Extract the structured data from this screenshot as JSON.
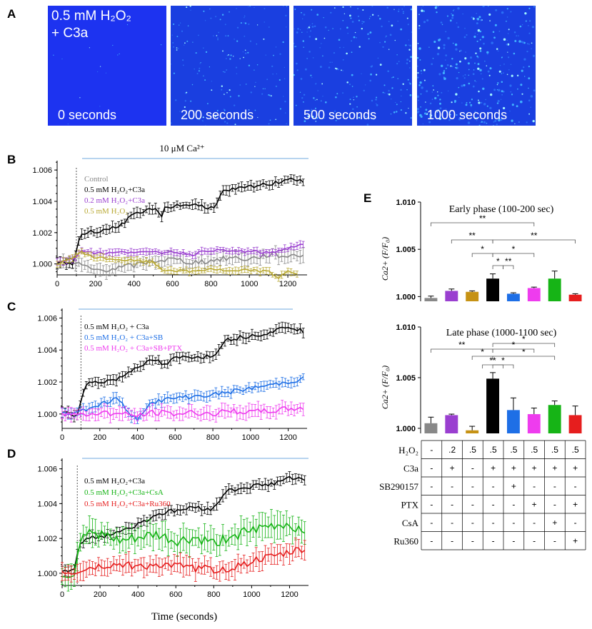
{
  "panel_letters": {
    "a": "A",
    "b": "B",
    "c": "C",
    "d": "D",
    "e": "E"
  },
  "image_row": {
    "condition_line1": "0.5 mM H₂O₂",
    "condition_line2": "+ C3a",
    "frames": [
      {
        "label": "0 seconds",
        "intensity": 0.05
      },
      {
        "label": "200 seconds",
        "intensity": 0.45
      },
      {
        "label": "500 seconds",
        "intensity": 0.6
      },
      {
        "label": "1000 seconds",
        "intensity": 0.85
      }
    ]
  },
  "ca_label": "10 μM Ca²⁺",
  "time_axis_label": "Time (seconds)",
  "colors": {
    "black": "#000000",
    "gray": "#888888",
    "purple": "#9a3fd0",
    "olive": "#b8a832",
    "blue": "#1e6fe6",
    "magenta": "#ee3cee",
    "green": "#16b416",
    "red": "#e61e1e",
    "gold": "#c69214",
    "lightblue": "#9fc6ea"
  },
  "chart_data": [
    {
      "id": "B",
      "type": "line",
      "xlim": [
        0,
        1300
      ],
      "ylim": [
        0.9993,
        1.0066
      ],
      "xticks": [
        0,
        200,
        400,
        600,
        800,
        1000,
        1200
      ],
      "yticks": [
        1.0,
        1.002,
        1.004,
        1.006
      ],
      "ytick_labels": [
        "1.000",
        "1.002",
        "1.004",
        "1.006"
      ],
      "stim_time": 100,
      "legend": [
        "Control",
        "0.5 mM H₂O₂+C3a",
        "0.2 mM H₂O₂+C3a",
        "0.5 mM H₂O₂"
      ],
      "series": [
        {
          "name": "Control",
          "color": "gray",
          "pts": [
            [
              0,
              1.0001
            ],
            [
              100,
              1.0
            ],
            [
              150,
              0.9998
            ],
            [
              200,
              0.9996
            ],
            [
              300,
              0.9997
            ],
            [
              400,
              0.9999
            ],
            [
              500,
              1.0002
            ],
            [
              600,
              1.0003
            ],
            [
              700,
              1.0001
            ],
            [
              800,
              1.0002
            ],
            [
              900,
              1.0004
            ],
            [
              1000,
              1.0003
            ],
            [
              1100,
              1.0006
            ],
            [
              1200,
              1.0005
            ],
            [
              1280,
              1.0006
            ]
          ],
          "err": 0.0004
        },
        {
          "name": "0.5 mM H₂O₂+C3a",
          "color": "black",
          "pts": [
            [
              0,
              1.0001
            ],
            [
              80,
              1.0
            ],
            [
              100,
              1.0008
            ],
            [
              120,
              1.0019
            ],
            [
              200,
              1.0021
            ],
            [
              300,
              1.0023
            ],
            [
              350,
              1.0027
            ],
            [
              400,
              1.0031
            ],
            [
              450,
              1.0033
            ],
            [
              500,
              1.0036
            ],
            [
              540,
              1.003
            ],
            [
              560,
              1.0036
            ],
            [
              600,
              1.0037
            ],
            [
              700,
              1.0038
            ],
            [
              800,
              1.0036
            ],
            [
              830,
              1.0038
            ],
            [
              860,
              1.0046
            ],
            [
              900,
              1.0047
            ],
            [
              1000,
              1.0049
            ],
            [
              1100,
              1.0051
            ],
            [
              1150,
              1.0052
            ],
            [
              1200,
              1.0055
            ],
            [
              1280,
              1.0053
            ]
          ],
          "err": 0.0003
        },
        {
          "name": "0.2 mM H₂O₂+C3a",
          "color": "purple",
          "pts": [
            [
              0,
              1.0001
            ],
            [
              100,
              1.0004
            ],
            [
              120,
              1.0009
            ],
            [
              200,
              1.0007
            ],
            [
              300,
              1.0007
            ],
            [
              400,
              1.0008
            ],
            [
              500,
              1.0007
            ],
            [
              600,
              1.0008
            ],
            [
              700,
              1.0006
            ],
            [
              800,
              1.0009
            ],
            [
              900,
              1.0008
            ],
            [
              1000,
              1.0008
            ],
            [
              1100,
              1.0007
            ],
            [
              1200,
              1.001
            ],
            [
              1280,
              1.0013
            ]
          ],
          "err": 0.0002
        },
        {
          "name": "0.5 mM H₂O₂",
          "color": "olive",
          "pts": [
            [
              0,
              1.0
            ],
            [
              100,
              1.0005
            ],
            [
              120,
              1.0008
            ],
            [
              200,
              1.0004
            ],
            [
              300,
              1.0003
            ],
            [
              400,
              1.0002
            ],
            [
              500,
              1.0001
            ],
            [
              550,
              0.9996
            ],
            [
              600,
              0.9996
            ],
            [
              700,
              0.9995
            ],
            [
              800,
              0.9997
            ],
            [
              900,
              0.9995
            ],
            [
              1000,
              0.9996
            ],
            [
              1100,
              0.9995
            ],
            [
              1150,
              0.9991
            ],
            [
              1200,
              0.9996
            ],
            [
              1250,
              0.9993
            ]
          ],
          "err": 0.0002
        }
      ]
    },
    {
      "id": "C",
      "type": "line",
      "xlim": [
        0,
        1300
      ],
      "ylim": [
        0.9991,
        1.0066
      ],
      "xticks": [
        0,
        200,
        400,
        600,
        800,
        1000,
        1200
      ],
      "yticks": [
        1.0,
        1.002,
        1.004,
        1.006
      ],
      "ytick_labels": [
        "1.000",
        "1.002",
        "1.004",
        "1.006"
      ],
      "stim_time": 100,
      "legend": [
        "0.5 mM H₂O₂ + C3a",
        "0.5 mM H₂O₂ + C3a+SB",
        "0.5 mM H₂O₂ + C3a+SB+PTX"
      ],
      "series": [
        {
          "name": "0.5 mM H₂O₂ + C3a",
          "color": "black",
          "pts": [
            [
              0,
              1.0001
            ],
            [
              80,
              0.9999
            ],
            [
              100,
              1.0008
            ],
            [
              120,
              1.0019
            ],
            [
              200,
              1.002
            ],
            [
              300,
              1.0022
            ],
            [
              350,
              1.0026
            ],
            [
              400,
              1.003
            ],
            [
              500,
              1.0034
            ],
            [
              540,
              1.003
            ],
            [
              600,
              1.0035
            ],
            [
              700,
              1.0036
            ],
            [
              800,
              1.0036
            ],
            [
              860,
              1.0046
            ],
            [
              900,
              1.0047
            ],
            [
              1000,
              1.0049
            ],
            [
              1100,
              1.0051
            ],
            [
              1200,
              1.0055
            ],
            [
              1280,
              1.0052
            ]
          ],
          "err": 0.0003
        },
        {
          "name": "0.5 mM H₂O₂ + C3a+SB",
          "color": "blue",
          "pts": [
            [
              0,
              1.0
            ],
            [
              100,
              1.0002
            ],
            [
              200,
              1.0006
            ],
            [
              300,
              1.001
            ],
            [
              350,
              1.0
            ],
            [
              400,
              0.9997
            ],
            [
              450,
              1.0005
            ],
            [
              500,
              1.0008
            ],
            [
              600,
              1.001
            ],
            [
              700,
              1.0011
            ],
            [
              800,
              1.0012
            ],
            [
              900,
              1.0014
            ],
            [
              1000,
              1.0016
            ],
            [
              1100,
              1.0018
            ],
            [
              1200,
              1.002
            ],
            [
              1280,
              1.0022
            ]
          ],
          "err": 0.0003
        },
        {
          "name": "0.5 mM H₂O₂ + C3a+SB+PTX",
          "color": "magenta",
          "pts": [
            [
              0,
              1.0001
            ],
            [
              100,
              0.9999
            ],
            [
              200,
              1.0001
            ],
            [
              300,
              1.0
            ],
            [
              400,
              0.9999
            ],
            [
              500,
              1.0001
            ],
            [
              600,
              1.0
            ],
            [
              700,
              1.0001
            ],
            [
              800,
              1.0
            ],
            [
              900,
              1.0002
            ],
            [
              1000,
              1.0001
            ],
            [
              1100,
              1.0002
            ],
            [
              1200,
              1.0003
            ],
            [
              1280,
              1.0004
            ]
          ],
          "err": 0.0004
        }
      ]
    },
    {
      "id": "D",
      "type": "line",
      "xlim": [
        0,
        1300
      ],
      "ylim": [
        0.9993,
        1.0066
      ],
      "xticks": [
        0,
        200,
        400,
        600,
        800,
        1000,
        1200
      ],
      "yticks": [
        1.0,
        1.002,
        1.004,
        1.006
      ],
      "ytick_labels": [
        "1.000",
        "1.002",
        "1.004",
        "1.006"
      ],
      "stim_time": 80,
      "legend": [
        "0.5 mM H₂O₂+C3a",
        "0.5 mM H₂O₂+C3a+CsA",
        "0.5 mM H₂O₂+C3a+Ru360"
      ],
      "series": [
        {
          "name": "0.5 mM H₂O₂+C3a",
          "color": "black",
          "pts": [
            [
              0,
              1.0002
            ],
            [
              60,
              1.0001
            ],
            [
              100,
              1.0019
            ],
            [
              200,
              1.0021
            ],
            [
              300,
              1.0024
            ],
            [
              400,
              1.0028
            ],
            [
              500,
              1.0034
            ],
            [
              600,
              1.0036
            ],
            [
              700,
              1.0038
            ],
            [
              800,
              1.0037
            ],
            [
              860,
              1.0047
            ],
            [
              900,
              1.0048
            ],
            [
              1000,
              1.005
            ],
            [
              1100,
              1.0051
            ],
            [
              1200,
              1.0055
            ],
            [
              1280,
              1.0053
            ]
          ],
          "err": 0.0003
        },
        {
          "name": "0.5 mM H₂O₂+C3a+CsA",
          "color": "green",
          "pts": [
            [
              0,
              1.0
            ],
            [
              60,
              0.9998
            ],
            [
              100,
              1.0022
            ],
            [
              200,
              1.0023
            ],
            [
              300,
              1.0018
            ],
            [
              400,
              1.002
            ],
            [
              500,
              1.0022
            ],
            [
              600,
              1.0018
            ],
            [
              700,
              1.002
            ],
            [
              800,
              1.0017
            ],
            [
              900,
              1.0022
            ],
            [
              1000,
              1.0024
            ],
            [
              1100,
              1.0027
            ],
            [
              1200,
              1.0028
            ],
            [
              1280,
              1.0024
            ]
          ],
          "err": 0.0007
        },
        {
          "name": "0.5 mM H₂O₂+C3a+Ru360",
          "color": "red",
          "pts": [
            [
              0,
              1.0001
            ],
            [
              60,
              1.0
            ],
            [
              100,
              1.0002
            ],
            [
              200,
              1.0004
            ],
            [
              300,
              1.0005
            ],
            [
              400,
              1.0004
            ],
            [
              500,
              1.0005
            ],
            [
              600,
              1.0004
            ],
            [
              700,
              1.0003
            ],
            [
              800,
              1.0002
            ],
            [
              900,
              1.0003
            ],
            [
              1000,
              1.0007
            ],
            [
              1100,
              1.0009
            ],
            [
              1200,
              1.0012
            ],
            [
              1280,
              1.0014
            ]
          ],
          "err": 0.0005
        }
      ]
    },
    {
      "id": "E-early",
      "type": "bar",
      "title": "Early phase (100-200 sec)",
      "ylabel": "Ca2+ (F/F₀)",
      "ylim": [
        0.9995,
        1.01
      ],
      "yticks": [
        1.0,
        1.005,
        1.01
      ],
      "ytick_labels": [
        "1.000",
        "1.005",
        "1.010"
      ],
      "values": [
        0.99985,
        1.0006,
        1.0005,
        1.0019,
        1.0003,
        1.0009,
        1.0019,
        1.0002
      ],
      "errors": [
        0.0002,
        0.0002,
        0.0001,
        0.0005,
        0.0001,
        0.0001,
        0.0008,
        0.0001
      ],
      "colors": [
        "gray",
        "purple",
        "gold",
        "black",
        "blue",
        "magenta",
        "green",
        "red"
      ],
      "significance": [
        {
          "a": 3,
          "b": 0,
          "label": "**"
        },
        {
          "a": 3,
          "b": 1,
          "label": "**"
        },
        {
          "a": 3,
          "b": 2,
          "label": "*"
        },
        {
          "a": 3,
          "b": 4,
          "label": "*"
        },
        {
          "a": 3,
          "b": 5,
          "label": "*"
        },
        {
          "a": 3,
          "b": 4,
          "label": "**"
        },
        {
          "a": 3,
          "b": 7,
          "label": "**"
        }
      ]
    },
    {
      "id": "E-late",
      "type": "bar",
      "title": "Late phase (1000-1100 sec)",
      "ylabel": "Ca2+ (F/F₀)",
      "ylim": [
        0.9995,
        1.01
      ],
      "yticks": [
        1.0,
        1.005,
        1.01
      ],
      "ytick_labels": [
        "1.000",
        "1.005",
        "1.010"
      ],
      "values": [
        1.0005,
        1.0013,
        0.9998,
        1.0049,
        1.0018,
        1.0014,
        1.0023,
        1.0013
      ],
      "errors": [
        0.0006,
        0.0001,
        0.0004,
        0.0006,
        0.0012,
        0.0006,
        0.0004,
        0.0009
      ],
      "colors": [
        "gray",
        "purple",
        "gold",
        "black",
        "blue",
        "magenta",
        "green",
        "red"
      ]
    }
  ],
  "e_table": {
    "rows": [
      {
        "label": "H₂O₂",
        "vals": [
          "-",
          ".2",
          ".5",
          ".5",
          ".5",
          ".5",
          ".5",
          ".5"
        ]
      },
      {
        "label": "C3a",
        "vals": [
          "-",
          "+",
          "-",
          "+",
          "+",
          "+",
          "+",
          "+"
        ]
      },
      {
        "label": "SB290157",
        "vals": [
          "-",
          "-",
          "-",
          "-",
          "+",
          "-",
          "-",
          "-"
        ]
      },
      {
        "label": "PTX",
        "vals": [
          "-",
          "-",
          "-",
          "-",
          "-",
          "+",
          "-",
          "+"
        ]
      },
      {
        "label": "CsA",
        "vals": [
          "-",
          "-",
          "-",
          "-",
          "-",
          "-",
          "+",
          "-"
        ]
      },
      {
        "label": "Ru360",
        "vals": [
          "-",
          "-",
          "-",
          "-",
          "-",
          "-",
          "-",
          "+"
        ]
      }
    ]
  },
  "sig_labels": {
    "double": "**",
    "single": "*"
  }
}
